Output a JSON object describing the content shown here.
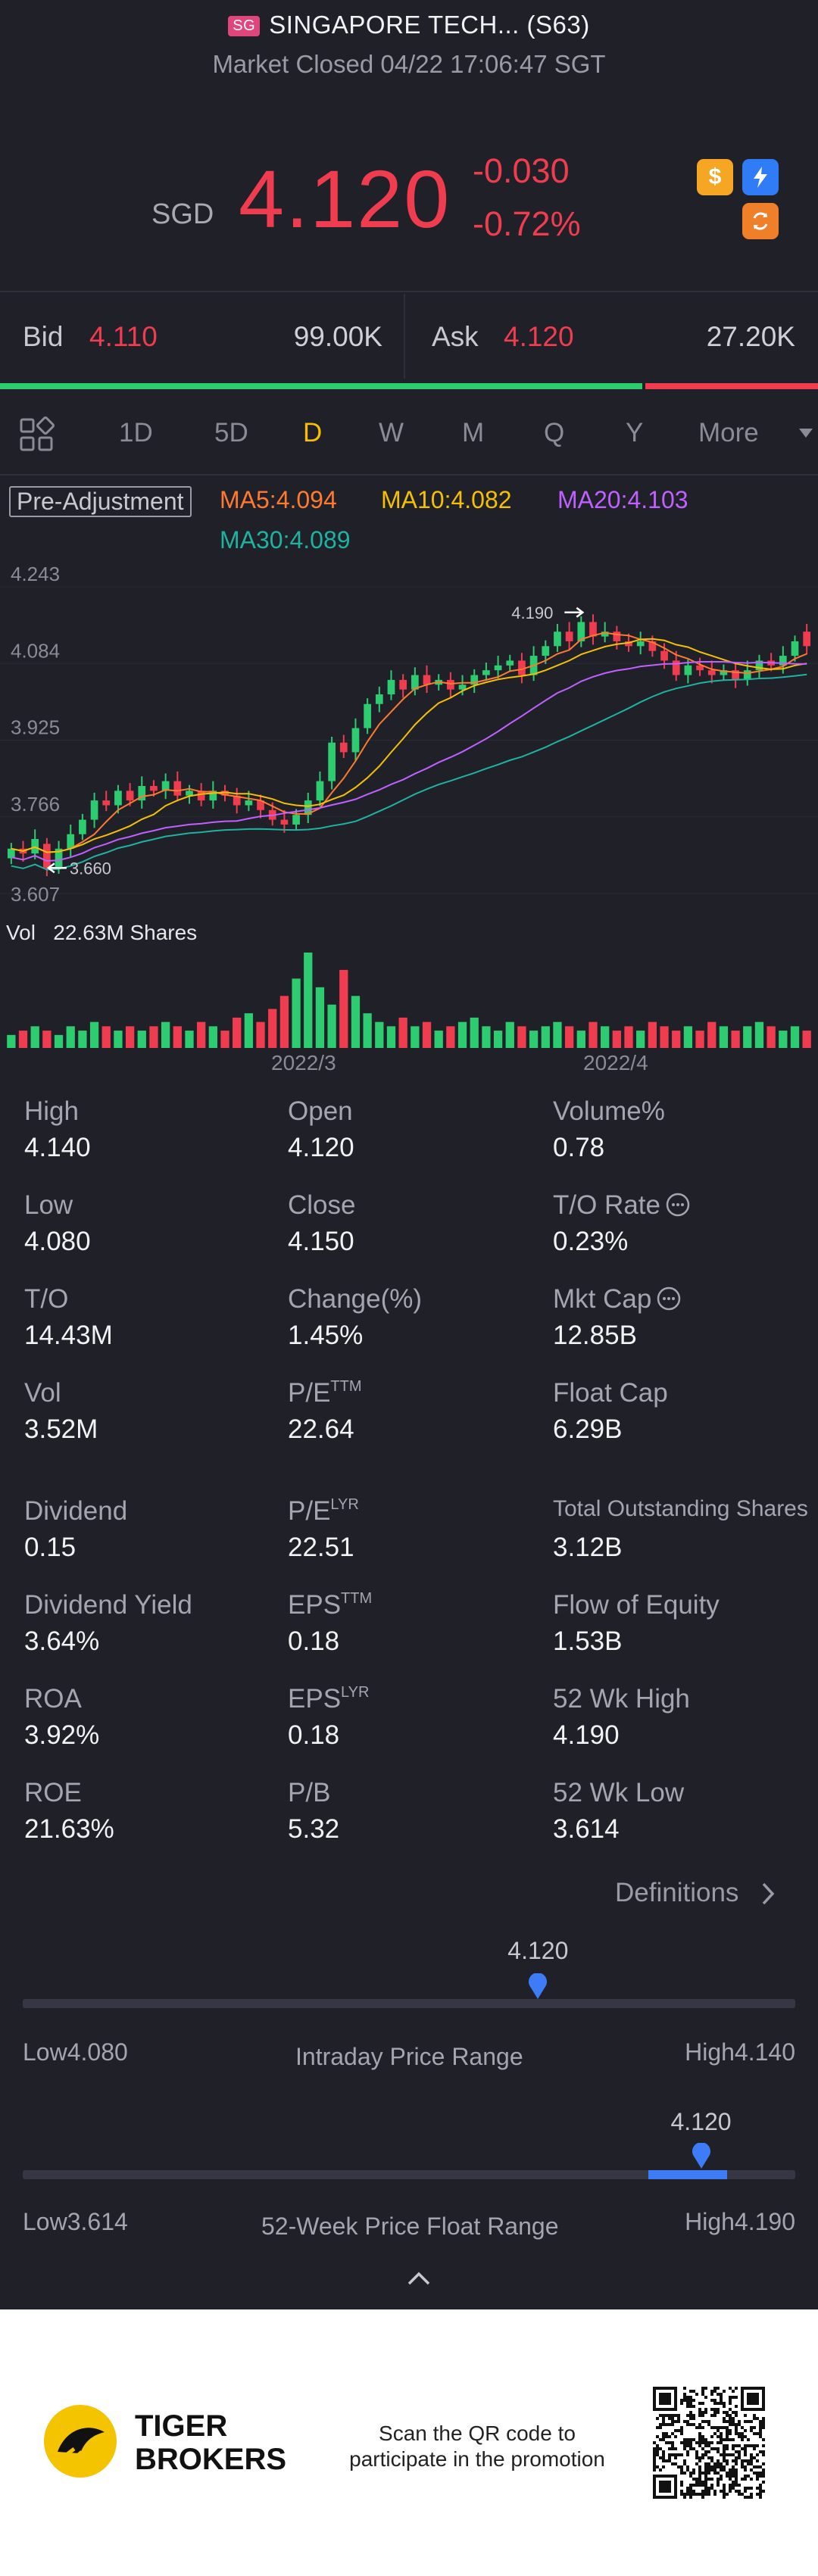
{
  "header": {
    "badge": "SG",
    "title": "SINGAPORE TECH... (S63)",
    "status": "Market Closed 04/22 17:06:47 SGT"
  },
  "quote": {
    "currency": "SGD",
    "price": "4.120",
    "change": "-0.030",
    "change_pct": "-0.72%",
    "up_color": "#2ecc71",
    "down_color": "#f03c4f",
    "icons": [
      "dollar-icon",
      "lightning-l1-icon",
      "refresh-icon"
    ]
  },
  "bid_ask": {
    "bid_label": "Bid",
    "bid_price": "4.110",
    "bid_size": "99.00K",
    "ask_label": "Ask",
    "ask_price": "4.120",
    "ask_size": "27.20K",
    "bid_share": 0.785
  },
  "tabs": {
    "items": [
      "1D",
      "5D",
      "D",
      "W",
      "M",
      "Q",
      "Y",
      "More"
    ],
    "active": "D",
    "active_color": "#f5c000"
  },
  "chart_data": [
    {
      "type": "candlestick",
      "title": "",
      "adjustment": "Pre-Adjustment",
      "ma": [
        {
          "label": "MA5:4.094",
          "color": "#ff7a2e"
        },
        {
          "label": "MA10:4.082",
          "color": "#f5c000"
        },
        {
          "label": "MA20:4.103",
          "color": "#c060ff"
        },
        {
          "label": "MA30:4.089",
          "color": "#20b2a0"
        }
      ],
      "y_ticks": [
        "4.243",
        "4.084",
        "3.925",
        "3.766",
        "3.607"
      ],
      "ylim": [
        3.607,
        4.243
      ],
      "high_marker": "4.190",
      "low_marker": "3.660",
      "x_ticks": [
        "2022/3",
        "2022/4"
      ],
      "close": [
        3.7,
        3.69,
        3.72,
        3.66,
        3.7,
        3.73,
        3.76,
        3.8,
        3.79,
        3.82,
        3.8,
        3.83,
        3.82,
        3.84,
        3.81,
        3.82,
        3.8,
        3.82,
        3.81,
        3.79,
        3.8,
        3.78,
        3.76,
        3.75,
        3.77,
        3.8,
        3.84,
        3.92,
        3.9,
        3.95,
        4.0,
        4.02,
        4.05,
        4.03,
        4.06,
        4.04,
        4.05,
        4.03,
        4.04,
        4.06,
        4.07,
        4.08,
        4.09,
        4.06,
        4.1,
        4.12,
        4.15,
        4.13,
        4.17,
        4.14,
        4.15,
        4.13,
        4.12,
        4.13,
        4.11,
        4.09,
        4.06,
        4.08,
        4.07,
        4.06,
        4.07,
        4.05,
        4.07,
        4.09,
        4.08,
        4.1,
        4.13,
        4.12
      ],
      "open": [
        3.68,
        3.7,
        3.69,
        3.71,
        3.66,
        3.7,
        3.73,
        3.76,
        3.8,
        3.79,
        3.82,
        3.8,
        3.83,
        3.82,
        3.84,
        3.81,
        3.82,
        3.8,
        3.82,
        3.81,
        3.79,
        3.8,
        3.78,
        3.76,
        3.75,
        3.77,
        3.8,
        3.84,
        3.92,
        3.9,
        3.95,
        4.0,
        4.02,
        4.05,
        4.03,
        4.06,
        4.04,
        4.05,
        4.03,
        4.04,
        4.06,
        4.07,
        4.08,
        4.09,
        4.06,
        4.1,
        4.12,
        4.15,
        4.13,
        4.17,
        4.14,
        4.15,
        4.13,
        4.12,
        4.13,
        4.11,
        4.09,
        4.06,
        4.08,
        4.07,
        4.06,
        4.07,
        4.05,
        4.07,
        4.09,
        4.08,
        4.1,
        4.15
      ]
    },
    {
      "type": "bar",
      "title": "",
      "label": "Vol",
      "value_label": "22.63M Shares",
      "values": [
        3,
        4,
        5,
        4,
        3,
        5,
        4,
        6,
        5,
        4,
        5,
        4,
        5,
        6,
        5,
        4,
        6,
        5,
        4,
        7,
        8,
        6,
        9,
        12,
        16,
        22,
        14,
        10,
        18,
        12,
        8,
        6,
        5,
        7,
        5,
        6,
        4,
        5,
        6,
        7,
        5,
        4,
        6,
        5,
        4,
        5,
        6,
        5,
        4,
        6,
        5,
        4,
        5,
        4,
        6,
        5,
        4,
        5,
        4,
        6,
        5,
        4,
        5,
        6,
        5,
        4,
        5,
        4
      ]
    }
  ],
  "stats": {
    "row1": [
      {
        "label": "High",
        "value": "4.140"
      },
      {
        "label": "Open",
        "value": "4.120"
      },
      {
        "label": "Volume%",
        "value": "0.78"
      }
    ],
    "row2": [
      {
        "label": "Low",
        "value": "4.080"
      },
      {
        "label": "Close",
        "value": "4.150"
      },
      {
        "label": "T/O Rate",
        "value": "0.23%"
      }
    ],
    "row3": [
      {
        "label": "T/O",
        "value": "14.43M"
      },
      {
        "label": "Change(%)",
        "value": "1.45%"
      },
      {
        "label": "Mkt Cap",
        "value": "12.85B"
      }
    ],
    "row4": [
      {
        "label": "Vol",
        "value": "3.52M"
      },
      {
        "label": "P/E",
        "sup": "TTM",
        "value": "22.64"
      },
      {
        "label": "Float Cap",
        "value": "6.29B"
      }
    ],
    "row5": [
      {
        "label": "Dividend",
        "value": "0.15"
      },
      {
        "label": "P/E",
        "sup": "LYR",
        "value": "22.51"
      },
      {
        "label": "Total Outstanding Shares",
        "value": "3.12B"
      }
    ],
    "row6": [
      {
        "label": "Dividend Yield",
        "value": "3.64%"
      },
      {
        "label": "EPS",
        "sup": "TTM",
        "value": "0.18"
      },
      {
        "label": "Flow of Equity",
        "value": "1.53B"
      }
    ],
    "row7": [
      {
        "label": "ROA",
        "value": "3.92%"
      },
      {
        "label": "EPS",
        "sup": "LYR",
        "value": "0.18"
      },
      {
        "label": "52 Wk High",
        "value": "4.190"
      }
    ],
    "row8": [
      {
        "label": "ROE",
        "value": "21.63%"
      },
      {
        "label": "P/B",
        "value": "5.32"
      },
      {
        "label": "52 Wk Low",
        "value": "3.614"
      }
    ],
    "definitions": "Definitions"
  },
  "ranges": {
    "intraday": {
      "title": "Intraday Price Range",
      "low": "Low4.080",
      "high": "High4.140",
      "current": "4.120",
      "position": 0.667
    },
    "week52": {
      "title": "52-Week Price Float Range",
      "low": "Low3.614",
      "high": "High4.190",
      "current": "4.120",
      "position": 0.878
    }
  },
  "footer": {
    "brand_line1": "TIGER",
    "brand_line2": "BROKERS",
    "promo_line1": "Scan the QR code to",
    "promo_line2": "participate in the promotion"
  }
}
